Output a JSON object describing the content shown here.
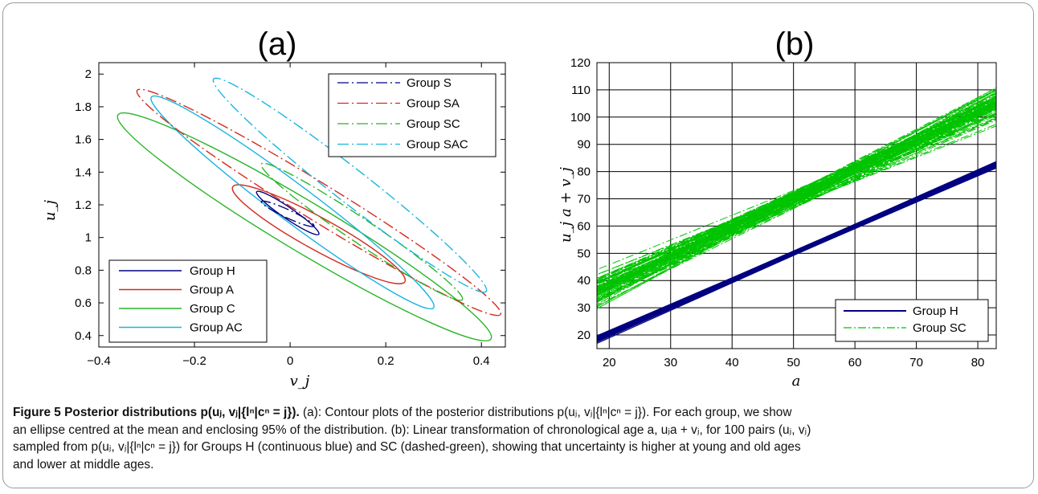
{
  "chart_data": [
    {
      "type": "contour",
      "title": "(a)",
      "xlabel": "v_j",
      "ylabel": "u_j",
      "xlim": [
        -0.4,
        0.45
      ],
      "ylim": [
        0.33,
        2.07
      ],
      "xticks": [
        "−0.4",
        "−0.2",
        "0",
        "0.2",
        "0.4"
      ],
      "yticks": [
        "0.4",
        "0.6",
        "0.8",
        "1",
        "1.2",
        "1.4",
        "1.6",
        "1.8",
        "2"
      ],
      "grid": false,
      "legend_top_right": [
        "Group S",
        "Group SA",
        "Group SC",
        "Group SAC"
      ],
      "legend_bottom_left": [
        "Group H",
        "Group A",
        "Group C",
        "Group AC"
      ],
      "colors": {
        "H": "#000080",
        "A": "#d52a1e",
        "C": "#2ab52a",
        "AC": "#1cb4e0"
      },
      "series": [
        {
          "name": "Group H",
          "style": "solid",
          "color": "#000080",
          "center": [
            0.0,
            1.15
          ],
          "endpoints": [
            [
              -0.07,
              1.28
            ],
            [
              0.06,
              1.02
            ]
          ]
        },
        {
          "name": "Group A",
          "style": "solid",
          "color": "#d52a1e",
          "center": [
            0.07,
            1.0
          ],
          "endpoints": [
            [
              -0.12,
              1.31
            ],
            [
              0.24,
              0.73
            ]
          ]
        },
        {
          "name": "Group C",
          "style": "solid",
          "color": "#2ab52a",
          "center": [
            0.03,
            1.06
          ],
          "endpoints": [
            [
              -0.36,
              1.75
            ],
            [
              0.42,
              0.38
            ]
          ]
        },
        {
          "name": "Group AC",
          "style": "solid",
          "color": "#1cb4e0",
          "center": [
            0.07,
            1.23
          ],
          "endpoints": [
            [
              -0.29,
              1.86
            ],
            [
              0.3,
              0.57
            ]
          ]
        },
        {
          "name": "Group S",
          "style": "dash-dot",
          "color": "#000080",
          "center": [
            0.0,
            1.15
          ],
          "endpoints": [
            [
              -0.06,
              1.22
            ],
            [
              0.05,
              1.07
            ]
          ]
        },
        {
          "name": "Group SA",
          "style": "dash-dot",
          "color": "#d52a1e",
          "center": [
            0.06,
            1.22
          ],
          "endpoints": [
            [
              -0.32,
              1.9
            ],
            [
              0.44,
              0.53
            ]
          ]
        },
        {
          "name": "Group SC",
          "style": "dash-dot",
          "color": "#2ab52a",
          "center": [
            0.12,
            1.09
          ],
          "endpoints": [
            [
              -0.06,
              1.45
            ],
            [
              0.36,
              0.62
            ]
          ]
        },
        {
          "name": "Group SAC",
          "style": "dash-dot",
          "color": "#1cb4e0",
          "center": [
            0.13,
            1.32
          ],
          "endpoints": [
            [
              -0.16,
              1.97
            ],
            [
              0.41,
              0.67
            ]
          ]
        }
      ]
    },
    {
      "type": "line",
      "title": "(b)",
      "xlabel": "a",
      "ylabel": "u_j a + v_j",
      "xlim": [
        18,
        83
      ],
      "ylim": [
        15,
        120
      ],
      "xticks": [
        "20",
        "30",
        "40",
        "50",
        "60",
        "70",
        "80"
      ],
      "yticks": [
        "20",
        "30",
        "40",
        "50",
        "60",
        "70",
        "80",
        "90",
        "100",
        "110",
        "120"
      ],
      "grid": true,
      "legend": "bottom-right",
      "series": [
        {
          "name": "Group H",
          "style": "solid",
          "color": "#000080",
          "x": [
            18,
            50,
            83
          ],
          "y": [
            19,
            50,
            83
          ],
          "band": 2.5,
          "samples": 100
        },
        {
          "name": "Group SC",
          "style": "dashed",
          "color": "#00c400",
          "x": [
            18,
            50,
            83
          ],
          "y": [
            35,
            70,
            103
          ],
          "band_at_x": [
            [
              18,
              14
            ],
            [
              50,
              5
            ],
            [
              83,
              10
            ]
          ],
          "samples": 100
        }
      ]
    }
  ],
  "caption": {
    "label": "Figure 5",
    "title": "Posterior distributions p(uⱼ, vⱼ|{lⁿ|cⁿ = j}).",
    "line1": "(a): Contour plots of the posterior distributions p(uⱼ, vⱼ|{lⁿ|cⁿ = j}). For each group, we show",
    "line2": "an ellipse centred at the mean and enclosing 95% of the distribution. (b): Linear transformation of chronological age a, uⱼa + vⱼ, for 100 pairs (uⱼ, vⱼ)",
    "line3": "sampled from p(uⱼ, vⱼ|{lⁿ|cⁿ = j}) for Groups H (continuous blue) and SC (dashed-green), showing that uncertainty is higher at young and old ages",
    "line4": "and lower at middle ages."
  }
}
